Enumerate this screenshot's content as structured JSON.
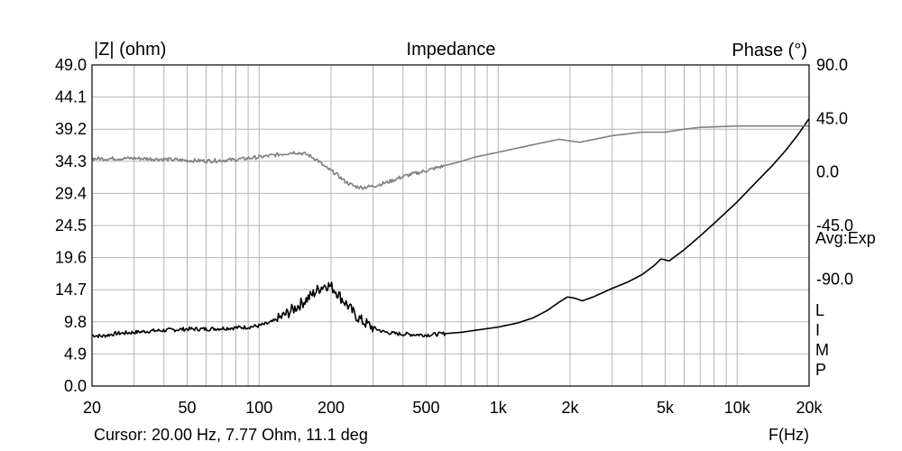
{
  "chart_data": {
    "type": "line",
    "title": "Impedance",
    "ylabel_left": "|Z| (ohm)",
    "ylabel_right": "Phase (°)",
    "xlabel": "F(Hz)",
    "x_scale": "log",
    "xlim": [
      20,
      20000
    ],
    "ylim_left": [
      0.0,
      49.0
    ],
    "ylim_right": [
      -180,
      90
    ],
    "x_ticks": [
      {
        "value": 20,
        "label": "20"
      },
      {
        "value": 50,
        "label": "50"
      },
      {
        "value": 100,
        "label": "100"
      },
      {
        "value": 200,
        "label": "200"
      },
      {
        "value": 500,
        "label": "500"
      },
      {
        "value": 1000,
        "label": "1k"
      },
      {
        "value": 2000,
        "label": "2k"
      },
      {
        "value": 5000,
        "label": "5k"
      },
      {
        "value": 10000,
        "label": "10k"
      },
      {
        "value": 20000,
        "label": "20k"
      }
    ],
    "y_ticks_left": [
      "49.0",
      "44.1",
      "39.2",
      "34.3",
      "29.4",
      "24.5",
      "19.6",
      "14.7",
      "9.8",
      "4.9",
      "0.0"
    ],
    "y_ticks_right": [
      {
        "value": 90,
        "label": "90.0"
      },
      {
        "value": 45,
        "label": "45.0"
      },
      {
        "value": 0,
        "label": "0.0"
      },
      {
        "value": -45,
        "label": "-45.0"
      },
      {
        "value": -90,
        "label": "-90.0"
      }
    ],
    "grid": true,
    "annotations": {
      "averaging": "Avg:Exp",
      "side_letters": [
        "L",
        "I",
        "M",
        "P"
      ],
      "cursor": "Cursor: 20.00 Hz, 7.77 Ohm, 11.1 deg"
    },
    "series": [
      {
        "axis": "left",
        "color": "#000000",
        "points": [
          [
            20,
            7.77
          ],
          [
            22,
            7.6
          ],
          [
            25,
            8.0
          ],
          [
            30,
            8.2
          ],
          [
            35,
            8.4
          ],
          [
            40,
            8.5
          ],
          [
            50,
            8.7
          ],
          [
            60,
            8.7
          ],
          [
            70,
            8.8
          ],
          [
            80,
            8.9
          ],
          [
            90,
            9.0
          ],
          [
            100,
            9.2
          ],
          [
            110,
            9.6
          ],
          [
            120,
            10.2
          ],
          [
            130,
            11.0
          ],
          [
            140,
            11.8
          ],
          [
            150,
            12.6
          ],
          [
            160,
            13.4
          ],
          [
            170,
            14.2
          ],
          [
            180,
            15.0
          ],
          [
            190,
            15.5
          ],
          [
            200,
            15.2
          ],
          [
            210,
            14.5
          ],
          [
            220,
            13.5
          ],
          [
            235,
            12.3
          ],
          [
            250,
            11.0
          ],
          [
            270,
            9.9
          ],
          [
            300,
            8.9
          ],
          [
            330,
            8.3
          ],
          [
            370,
            8.0
          ],
          [
            420,
            7.9
          ],
          [
            500,
            7.8
          ],
          [
            600,
            8.0
          ],
          [
            700,
            8.2
          ],
          [
            800,
            8.5
          ],
          [
            1000,
            9.0
          ],
          [
            1200,
            9.6
          ],
          [
            1400,
            10.4
          ],
          [
            1600,
            11.5
          ],
          [
            1800,
            12.8
          ],
          [
            1950,
            13.6
          ],
          [
            2100,
            13.4
          ],
          [
            2250,
            13.0
          ],
          [
            2500,
            13.6
          ],
          [
            3000,
            14.9
          ],
          [
            3500,
            15.9
          ],
          [
            4000,
            17.0
          ],
          [
            4500,
            18.4
          ],
          [
            4800,
            19.4
          ],
          [
            5200,
            19.1
          ],
          [
            6000,
            20.8
          ],
          [
            7000,
            22.9
          ],
          [
            8000,
            24.8
          ],
          [
            10000,
            28.1
          ],
          [
            12000,
            31.1
          ],
          [
            14000,
            33.6
          ],
          [
            16000,
            36.0
          ],
          [
            18000,
            38.4
          ],
          [
            20000,
            40.8
          ]
        ]
      },
      {
        "axis": "right",
        "color": "#808080",
        "points": [
          [
            20,
            11.1
          ],
          [
            30,
            11.5
          ],
          [
            40,
            10.7
          ],
          [
            50,
            9.7
          ],
          [
            60,
            9.3
          ],
          [
            70,
            9.8
          ],
          [
            80,
            10.4
          ],
          [
            100,
            12.5
          ],
          [
            120,
            14.6
          ],
          [
            140,
            16.6
          ],
          [
            150,
            15.8
          ],
          [
            160,
            14.4
          ],
          [
            175,
            10.2
          ],
          [
            190,
            3.7
          ],
          [
            200,
            1.1
          ],
          [
            210,
            -1.6
          ],
          [
            230,
            -8.2
          ],
          [
            250,
            -12.0
          ],
          [
            270,
            -13.1
          ],
          [
            300,
            -11.9
          ],
          [
            350,
            -8.2
          ],
          [
            400,
            -3.8
          ],
          [
            500,
            1.1
          ],
          [
            600,
            5.4
          ],
          [
            700,
            8.9
          ],
          [
            800,
            12.5
          ],
          [
            1000,
            16.6
          ],
          [
            1200,
            20.0
          ],
          [
            1500,
            24.2
          ],
          [
            1800,
            27.5
          ],
          [
            2000,
            26.1
          ],
          [
            2200,
            25.0
          ],
          [
            2500,
            27.3
          ],
          [
            3000,
            30.5
          ],
          [
            4000,
            33.5
          ],
          [
            5000,
            33.5
          ],
          [
            6000,
            36.0
          ],
          [
            7000,
            37.5
          ],
          [
            10000,
            38.7
          ],
          [
            15000,
            38.7
          ],
          [
            20000,
            38.7
          ]
        ]
      }
    ]
  }
}
